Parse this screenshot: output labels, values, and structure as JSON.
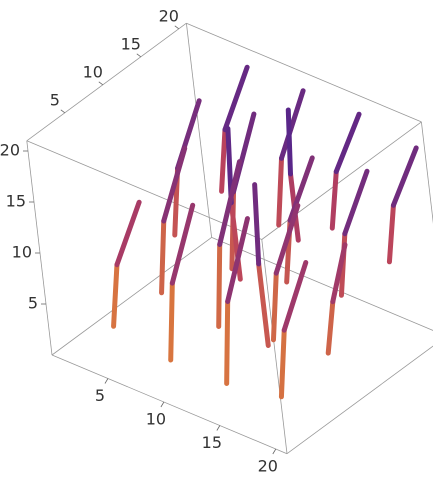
{
  "chart_data": {
    "type": "tube3d",
    "xlim": [
      0,
      21
    ],
    "ylim": [
      0,
      21
    ],
    "zlim": [
      0,
      21
    ],
    "xticks": [
      5,
      10,
      15,
      20
    ],
    "yticks": [
      5,
      10,
      15,
      20
    ],
    "zticks": [
      5,
      10,
      15,
      20
    ],
    "colorscale": [
      "#f5a623",
      "#b8405e",
      "#2e1a9c"
    ],
    "tubes": [
      {
        "x": [
          3,
          4,
          6
        ],
        "y": [
          4,
          4,
          5
        ],
        "z": [
          2,
          8.5,
          15
        ]
      },
      {
        "x": [
          8,
          9,
          11
        ],
        "y": [
          4,
          4,
          5
        ],
        "z": [
          1,
          9,
          17
        ]
      },
      {
        "x": [
          13,
          14,
          16
        ],
        "y": [
          4,
          4,
          5
        ],
        "z": [
          1,
          9.5,
          18
        ]
      },
      {
        "x": [
          18,
          19,
          21
        ],
        "y": [
          4,
          4,
          5
        ],
        "z": [
          2,
          9,
          16
        ]
      },
      {
        "x": [
          4,
          5,
          7
        ],
        "y": [
          9,
          9,
          10
        ],
        "z": [
          3,
          10.5,
          18
        ]
      },
      {
        "x": [
          9,
          10,
          12
        ],
        "y": [
          9,
          9,
          10
        ],
        "z": [
          2,
          10.5,
          19
        ]
      },
      {
        "x": [
          14,
          15,
          17
        ],
        "y": [
          9,
          9,
          10
        ],
        "z": [
          3,
          10,
          17
        ]
      },
      {
        "x": [
          19,
          20,
          21
        ],
        "y": [
          9,
          9,
          10
        ],
        "z": [
          4,
          9.5,
          15
        ]
      },
      {
        "x": [
          2,
          3,
          5
        ],
        "y": [
          14,
          14,
          15
        ],
        "z": [
          5,
          12,
          19
        ]
      },
      {
        "x": [
          7,
          8,
          10
        ],
        "y": [
          14,
          14,
          15
        ],
        "z": [
          4,
          12,
          20
        ]
      },
      {
        "x": [
          12,
          13,
          15
        ],
        "y": [
          14,
          14,
          15
        ],
        "z": [
          5,
          11.5,
          18
        ]
      },
      {
        "x": [
          17,
          18,
          20
        ],
        "y": [
          14,
          14,
          15
        ],
        "z": [
          6,
          12.5,
          19
        ]
      },
      {
        "x": [
          3,
          4,
          6
        ],
        "y": [
          19,
          19,
          20
        ],
        "z": [
          7,
          13.5,
          20
        ]
      },
      {
        "x": [
          8,
          9,
          11
        ],
        "y": [
          19,
          19,
          20
        ],
        "z": [
          6,
          13,
          20
        ]
      },
      {
        "x": [
          13,
          14,
          16
        ],
        "y": [
          19,
          19,
          20
        ],
        "z": [
          8,
          14,
          20
        ]
      },
      {
        "x": [
          18,
          19,
          21
        ],
        "y": [
          19,
          19,
          20
        ],
        "z": [
          7,
          13,
          19
        ]
      },
      {
        "x": [
          10,
          10,
          10.5
        ],
        "y": [
          11,
          11,
          11
        ],
        "z": [
          6,
          13.5,
          21
        ]
      },
      {
        "x": [
          12,
          12,
          12.5
        ],
        "y": [
          16,
          16,
          16
        ],
        "z": [
          8,
          14.5,
          21
        ]
      },
      {
        "x": [
          15,
          15,
          15.5
        ],
        "y": [
          7,
          7,
          7
        ],
        "z": [
          4,
          12,
          20
        ]
      }
    ]
  }
}
